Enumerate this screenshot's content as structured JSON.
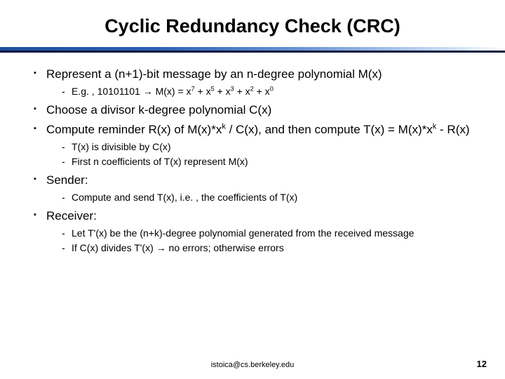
{
  "title": "Cyclic Redundancy Check (CRC)",
  "b1": "Represent a (n+1)-bit message by an n-degree  polynomial M(x)",
  "b1s1_pre": "E.g. , 10101101 ",
  "b1s1_post": " M(x) = x",
  "b1s1_plus1": " + x",
  "b1s1_plus2": " + x",
  "b1s1_plus3": " + x",
  "b1s1_plus4": " + x",
  "e7": "7",
  "e5": "5",
  "e3": "3",
  "e2": "2",
  "e0": "0",
  "b2": "Choose a divisor k-degree polynomial  C(x)",
  "b3_pre": "Compute reminder R(x) of M(x)*x",
  "b3_mid": " / C(x), and then compute T(x) = M(x)*x",
  "b3_post": " - R(x)",
  "ek": "k",
  "b3s1": "T(x) is divisible by C(x)",
  "b3s2": "First n coefficients of T(x) represent M(x)",
  "b4": "Sender:",
  "b4s1": "Compute and send T(x), i.e. , the coefficients of T(x)",
  "b5": "Receiver:",
  "b5s1": "Let T'(x) be the (n+k)-degree polynomial generated from the received message",
  "b5s2_pre": "If C(x) divides T'(x) ",
  "b5s2_post": " no errors; otherwise errors",
  "arrow": "→",
  "footer_email": "istoica@cs.berkeley.edu",
  "page_num": "12"
}
